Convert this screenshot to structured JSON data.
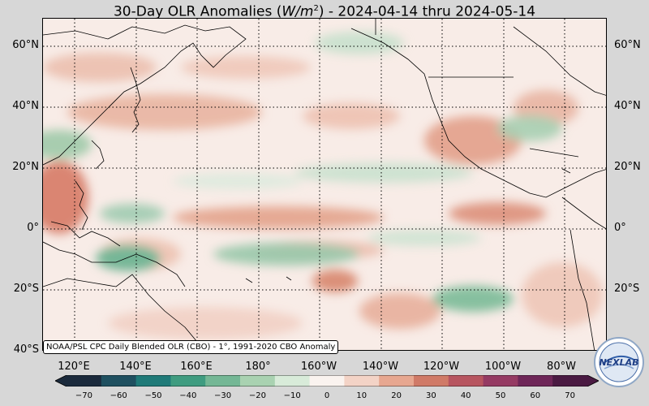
{
  "title_prefix": "30-Day OLR Anomalies (",
  "title_units": "W/m",
  "title_units_sup": "2",
  "title_suffix": ") - 2024-04-14 thru 2024-05-14",
  "lat_labels": [
    "60°N",
    "40°N",
    "20°N",
    "0°",
    "20°S",
    "40°S"
  ],
  "lon_labels": [
    "120°E",
    "140°E",
    "160°E",
    "180°",
    "160°W",
    "140°W",
    "120°W",
    "100°W",
    "80°W"
  ],
  "source_text": "NOAA/PSL CPC Daily Blended OLR (CBO) - 1°, 1991-2020 CBO Anomaly",
  "colorbar": {
    "min": -75,
    "max": 75,
    "ticks": [
      "−70",
      "−60",
      "−50",
      "−40",
      "−30",
      "−20",
      "−10",
      "0",
      "10",
      "20",
      "30",
      "40",
      "50",
      "60",
      "70"
    ],
    "tick_values": [
      -70,
      -60,
      -50,
      -40,
      -30,
      -20,
      -10,
      0,
      10,
      20,
      30,
      40,
      50,
      60,
      70
    ],
    "colors": [
      "#1b2a3c",
      "#1f5060",
      "#1f7a78",
      "#3f9c80",
      "#74b795",
      "#a9d2b1",
      "#d8ebd9",
      "#faf3ef",
      "#f3d3c6",
      "#e7a790",
      "#d07a67",
      "#b75560",
      "#953a63",
      "#6e2658",
      "#4a1a42"
    ]
  },
  "logo_text": "NEXLAB",
  "colors": {
    "background": "#d7d7d7",
    "ocean_base": "#f7ebe6",
    "positive": "#d9826e",
    "negative": "#5fae8c"
  },
  "chart_data": {
    "type": "heatmap",
    "title": "30-Day OLR Anomalies (W/m2) - 2024-04-14 thru 2024-05-14",
    "xlabel": "",
    "ylabel": "",
    "x_range": [
      "108°E",
      "70°W"
    ],
    "y_range": [
      "40°S",
      "68°N"
    ],
    "grid": true,
    "value_range": [
      -75,
      75
    ]
  }
}
